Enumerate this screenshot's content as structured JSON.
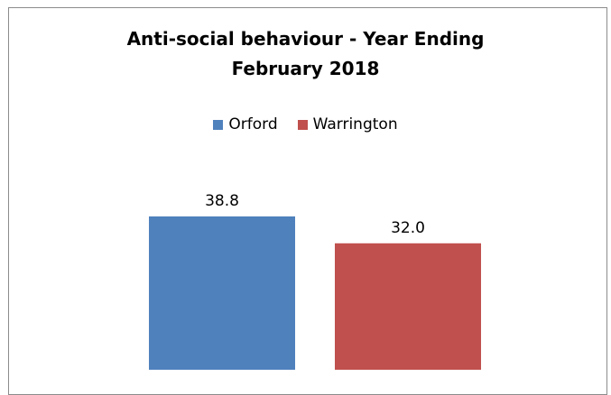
{
  "chart_data": {
    "type": "bar",
    "title": "Anti-social behaviour - Year Ending February 2018",
    "title_lines": [
      "Anti-social behaviour - Year Ending",
      "February 2018"
    ],
    "categories": [
      ""
    ],
    "series": [
      {
        "name": "Orford",
        "values": [
          38.8
        ],
        "color": "#4f81bd"
      },
      {
        "name": "Warrington",
        "values": [
          32.0
        ],
        "color": "#c0504d"
      }
    ],
    "data_labels": [
      "38.8",
      "32.0"
    ],
    "xlabel": "",
    "ylabel": "",
    "ylim": [
      0,
      45
    ],
    "grid": false,
    "legend_position": "top"
  }
}
